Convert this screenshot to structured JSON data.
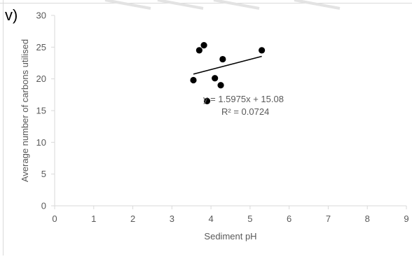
{
  "panel_label": "v)",
  "chart_data": {
    "type": "scatter",
    "xlabel": "Sediment pH",
    "ylabel": "Average number of carbons utilised",
    "xlim": [
      0,
      9
    ],
    "ylim": [
      0,
      30
    ],
    "x_ticks": [
      0,
      1,
      2,
      3,
      4,
      5,
      6,
      7,
      8,
      9
    ],
    "y_ticks": [
      0,
      5,
      10,
      15,
      20,
      25,
      30
    ],
    "grid": false,
    "series": [
      {
        "points": [
          {
            "x": 3.55,
            "y": 19.8
          },
          {
            "x": 3.7,
            "y": 24.5
          },
          {
            "x": 3.82,
            "y": 25.3
          },
          {
            "x": 3.9,
            "y": 16.5
          },
          {
            "x": 4.1,
            "y": 20.1
          },
          {
            "x": 4.25,
            "y": 19.0
          },
          {
            "x": 4.3,
            "y": 23.1
          },
          {
            "x": 5.3,
            "y": 24.5
          }
        ]
      }
    ],
    "trendline": {
      "type": "linear",
      "x_range": [
        3.55,
        5.3
      ],
      "slope": 1.5975,
      "intercept": 15.08,
      "equation": "y = 1.5975x + 15.08",
      "r_squared": "R² = 0.0724"
    },
    "colors": {
      "point": "#000000",
      "trendline": "#000000",
      "axis": "#d9d9d9",
      "text": "#595959"
    }
  }
}
